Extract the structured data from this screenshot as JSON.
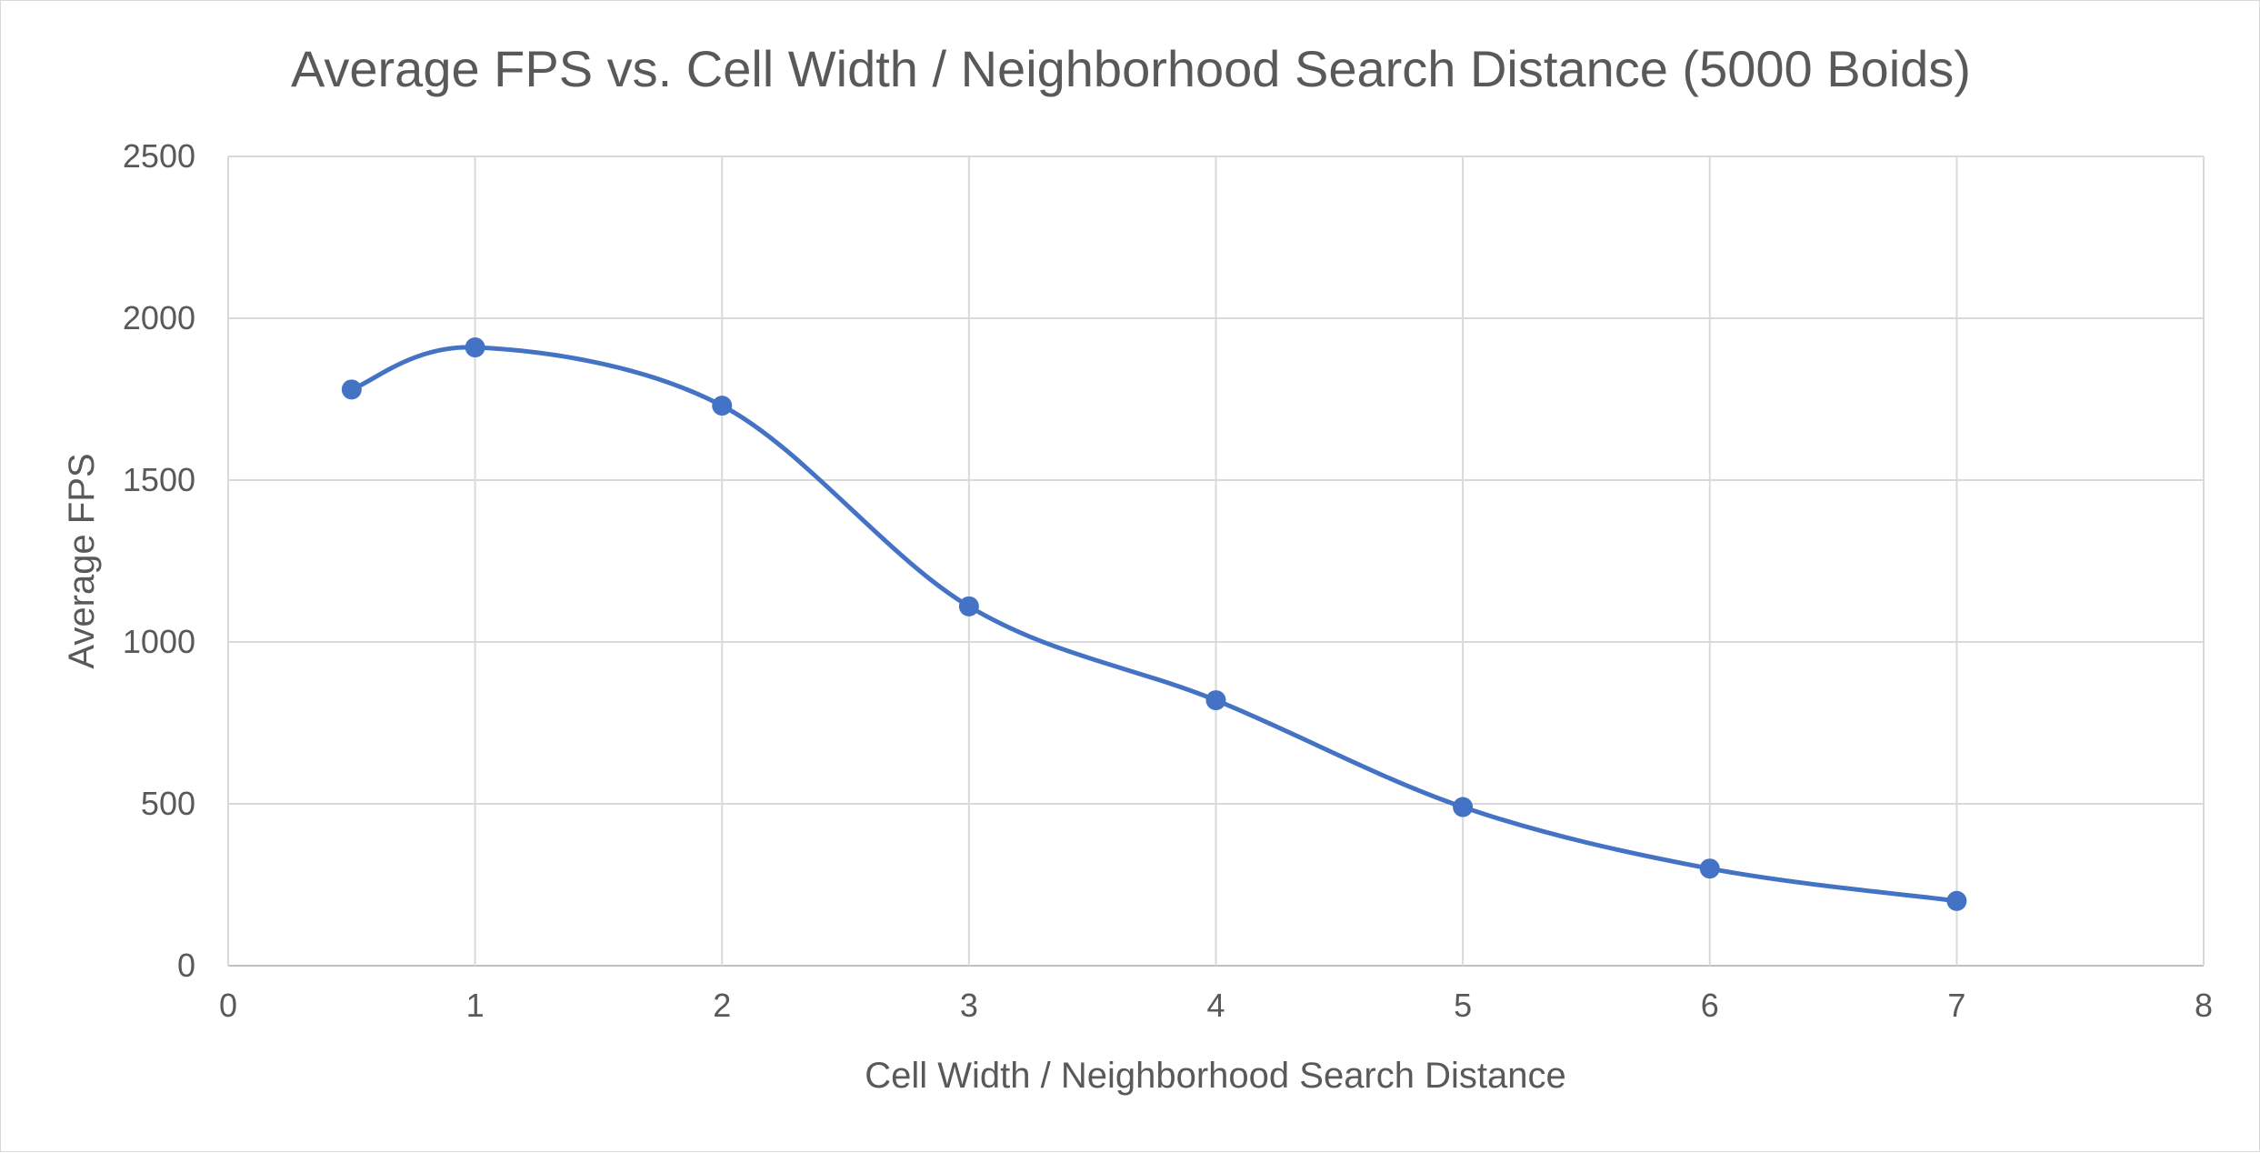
{
  "chart_data": {
    "type": "scatter",
    "title": "Average FPS vs. Cell Width / Neighborhood Search Distance (5000 Boids)",
    "xlabel": "Cell Width / Neighborhood Search Distance",
    "ylabel": "Average FPS",
    "xlim": [
      0,
      8
    ],
    "ylim": [
      0,
      2500
    ],
    "x_ticks": [
      "0",
      "1",
      "2",
      "3",
      "4",
      "5",
      "6",
      "7",
      "8"
    ],
    "y_ticks": [
      "0",
      "500",
      "1000",
      "1500",
      "2000",
      "2500"
    ],
    "grid": true,
    "line_style": "smooth-with-markers",
    "legend": "none",
    "series": [
      {
        "x": [
          0.5,
          1,
          2,
          3,
          4,
          5,
          6,
          7
        ],
        "y": [
          1780,
          1910,
          1730,
          1110,
          820,
          490,
          300,
          200
        ],
        "color": "#4472c4"
      }
    ]
  }
}
